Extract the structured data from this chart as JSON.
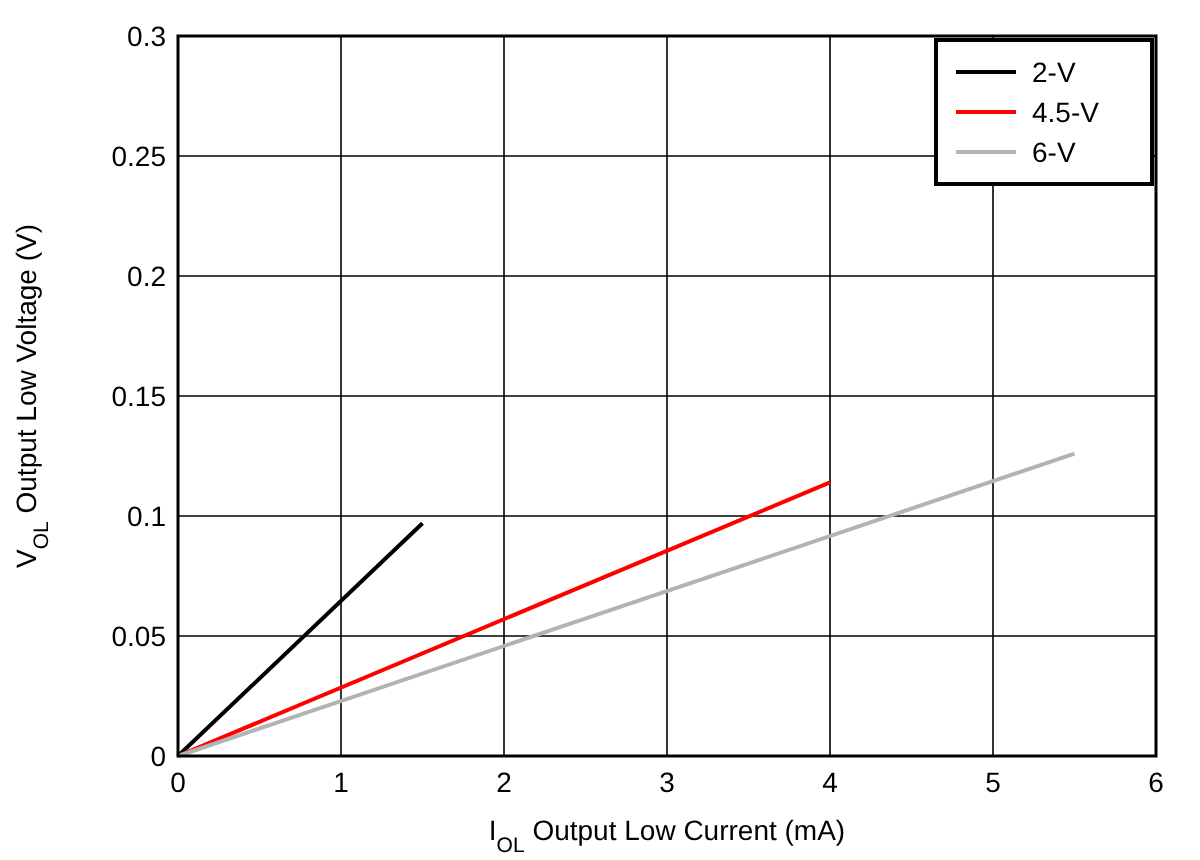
{
  "chart_data": {
    "type": "line",
    "xlabel": "I$_{OL}$ Output Low Current (mA)",
    "ylabel": "V$_{OL}$ Output Low Voltage (V)",
    "xlim": [
      0,
      6
    ],
    "xticks": [
      0,
      1,
      2,
      3,
      4,
      5,
      6
    ],
    "ylim": [
      0,
      0.3
    ],
    "yticks": [
      0,
      0.05,
      0.1,
      0.15,
      0.2,
      0.25,
      0.3
    ],
    "grid": true,
    "legend": "top right",
    "marker": "none",
    "line_style": "solid",
    "series": [
      {
        "name": "2-V",
        "color": "#000000",
        "x": [
          0,
          1.5
        ],
        "values": [
          0,
          0.097
        ]
      },
      {
        "name": "4.5-V",
        "color": "#ff0000",
        "x": [
          0,
          4
        ],
        "values": [
          0,
          0.114
        ]
      },
      {
        "name": "6-V",
        "color": "#b3b3b3",
        "x": [
          0,
          5.5
        ],
        "values": [
          0,
          0.126
        ]
      }
    ]
  }
}
